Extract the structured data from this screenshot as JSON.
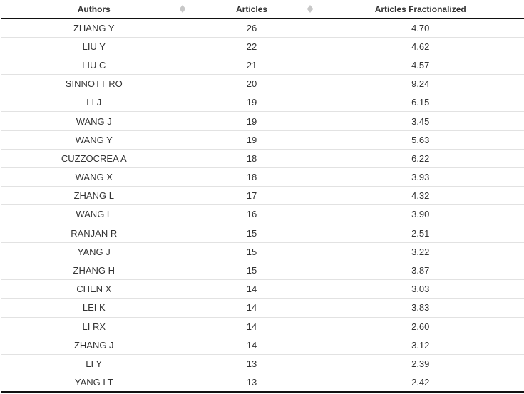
{
  "table": {
    "columns": [
      "Authors",
      "Articles",
      "Articles Fractionalized"
    ],
    "rows": [
      {
        "author": "ZHANG Y",
        "articles": "26",
        "fractionalized": "4.70"
      },
      {
        "author": "LIU Y",
        "articles": "22",
        "fractionalized": "4.62"
      },
      {
        "author": "LIU C",
        "articles": "21",
        "fractionalized": "4.57"
      },
      {
        "author": "SINNOTT RO",
        "articles": "20",
        "fractionalized": "9.24"
      },
      {
        "author": "LI J",
        "articles": "19",
        "fractionalized": "6.15"
      },
      {
        "author": "WANG J",
        "articles": "19",
        "fractionalized": "3.45"
      },
      {
        "author": "WANG Y",
        "articles": "19",
        "fractionalized": "5.63"
      },
      {
        "author": "CUZZOCREA A",
        "articles": "18",
        "fractionalized": "6.22"
      },
      {
        "author": "WANG X",
        "articles": "18",
        "fractionalized": "3.93"
      },
      {
        "author": "ZHANG L",
        "articles": "17",
        "fractionalized": "4.32"
      },
      {
        "author": "WANG L",
        "articles": "16",
        "fractionalized": "3.90"
      },
      {
        "author": "RANJAN R",
        "articles": "15",
        "fractionalized": "2.51"
      },
      {
        "author": "YANG J",
        "articles": "15",
        "fractionalized": "3.22"
      },
      {
        "author": "ZHANG H",
        "articles": "15",
        "fractionalized": "3.87"
      },
      {
        "author": "CHEN X",
        "articles": "14",
        "fractionalized": "3.03"
      },
      {
        "author": "LEI K",
        "articles": "14",
        "fractionalized": "3.83"
      },
      {
        "author": "LI RX",
        "articles": "14",
        "fractionalized": "2.60"
      },
      {
        "author": "ZHANG J",
        "articles": "14",
        "fractionalized": "3.12"
      },
      {
        "author": "LI Y",
        "articles": "13",
        "fractionalized": "2.39"
      },
      {
        "author": "YANG LT",
        "articles": "13",
        "fractionalized": "2.42"
      }
    ]
  }
}
